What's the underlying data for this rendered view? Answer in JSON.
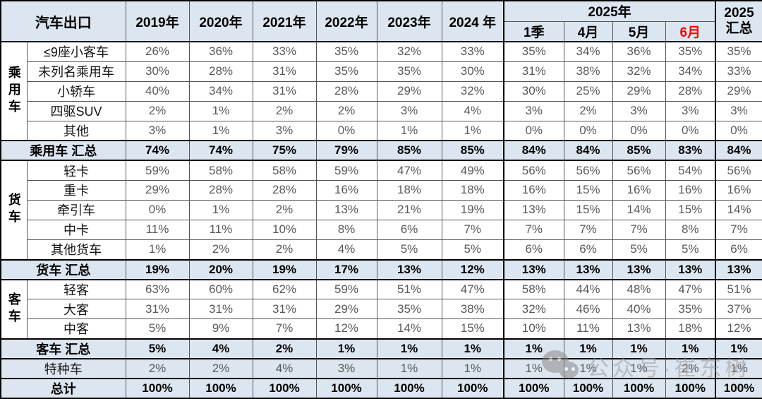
{
  "table": {
    "corner_label": "汽车出口",
    "year_columns": [
      "2019年",
      "2020年",
      "2021年",
      "2022年",
      "2023年",
      "2024 年"
    ],
    "group_2025": {
      "label": "2025年"
    },
    "period_columns": [
      {
        "label": "1季"
      },
      {
        "label": "4月"
      },
      {
        "label": "5月"
      },
      {
        "label": "6月",
        "color": "#ff0000"
      }
    ],
    "total_column": {
      "line1": "2025",
      "line2": "汇总"
    }
  },
  "colors": {
    "header_bg": "#dce6f1",
    "summary_bg": "#dce6f1",
    "value_text": "#595959",
    "june_highlight": "#ff0000",
    "border": "#000000"
  },
  "watermark": {
    "icon": "wechat-icon",
    "text": "公众号·崔东树"
  },
  "chart_data": {
    "type": "table",
    "title": "汽车出口",
    "unit": "%",
    "columns": [
      "2019年",
      "2020年",
      "2021年",
      "2022年",
      "2023年",
      "2024 年",
      "2025年 1季",
      "2025年 4月",
      "2025年 5月",
      "2025年 6月",
      "2025 汇总"
    ],
    "rows": [
      {
        "group": "乘用车",
        "group_rowspan": 5,
        "label": "≤9座小客车",
        "kind": "data",
        "values": [
          26,
          36,
          33,
          35,
          32,
          33,
          35,
          34,
          36,
          35,
          35
        ]
      },
      {
        "label": "未列名乘用车",
        "kind": "data",
        "values": [
          30,
          28,
          31,
          35,
          35,
          30,
          31,
          38,
          32,
          34,
          33
        ]
      },
      {
        "label": "小轿车",
        "kind": "data",
        "values": [
          40,
          34,
          31,
          28,
          29,
          32,
          30,
          25,
          29,
          28,
          29
        ]
      },
      {
        "label": "四驱SUV",
        "kind": "data",
        "values": [
          2,
          1,
          2,
          2,
          3,
          4,
          3,
          2,
          3,
          3,
          3
        ]
      },
      {
        "label": "其他",
        "kind": "data",
        "values": [
          3,
          1,
          3,
          0,
          1,
          1,
          0,
          0,
          0,
          0,
          0
        ]
      },
      {
        "label": "乘用车 汇总",
        "kind": "summary",
        "values": [
          74,
          74,
          75,
          79,
          85,
          85,
          84,
          84,
          85,
          83,
          84
        ]
      },
      {
        "group": "货车",
        "group_rowspan": 5,
        "label": "轻卡",
        "kind": "data",
        "values": [
          59,
          58,
          58,
          59,
          47,
          49,
          56,
          56,
          56,
          54,
          56
        ]
      },
      {
        "label": "重卡",
        "kind": "data",
        "values": [
          29,
          28,
          28,
          16,
          18,
          18,
          16,
          15,
          16,
          16,
          16
        ]
      },
      {
        "label": "牵引车",
        "kind": "data",
        "values": [
          0,
          1,
          2,
          13,
          21,
          19,
          13,
          15,
          14,
          15,
          14
        ]
      },
      {
        "label": "中卡",
        "kind": "data",
        "values": [
          11,
          11,
          10,
          8,
          6,
          7,
          7,
          7,
          7,
          8,
          7
        ]
      },
      {
        "label": "其他货车",
        "kind": "data",
        "values": [
          1,
          2,
          2,
          4,
          5,
          5,
          6,
          6,
          5,
          5,
          6
        ]
      },
      {
        "label": "货车 汇总",
        "kind": "summary",
        "values": [
          19,
          20,
          19,
          17,
          13,
          12,
          13,
          13,
          13,
          13,
          13
        ]
      },
      {
        "group": "客车",
        "group_rowspan": 3,
        "label": "轻客",
        "kind": "data",
        "values": [
          63,
          60,
          62,
          59,
          51,
          47,
          58,
          44,
          48,
          47,
          51
        ]
      },
      {
        "label": "大客",
        "kind": "data",
        "values": [
          31,
          31,
          31,
          29,
          35,
          38,
          32,
          46,
          40,
          35,
          37
        ]
      },
      {
        "label": "中客",
        "kind": "data",
        "values": [
          5,
          9,
          7,
          12,
          14,
          15,
          10,
          11,
          13,
          18,
          12
        ]
      },
      {
        "label": "客车 汇总",
        "kind": "summary",
        "values": [
          5,
          4,
          2,
          1,
          1,
          1,
          1,
          1,
          1,
          1,
          1
        ]
      },
      {
        "label": "特种车",
        "kind": "special",
        "values": [
          2,
          2,
          4,
          3,
          1,
          1,
          1,
          1,
          1,
          2,
          1
        ]
      },
      {
        "label": "总计",
        "kind": "total",
        "values": [
          100,
          100,
          100,
          100,
          100,
          100,
          100,
          100,
          100,
          100,
          100
        ]
      }
    ]
  }
}
